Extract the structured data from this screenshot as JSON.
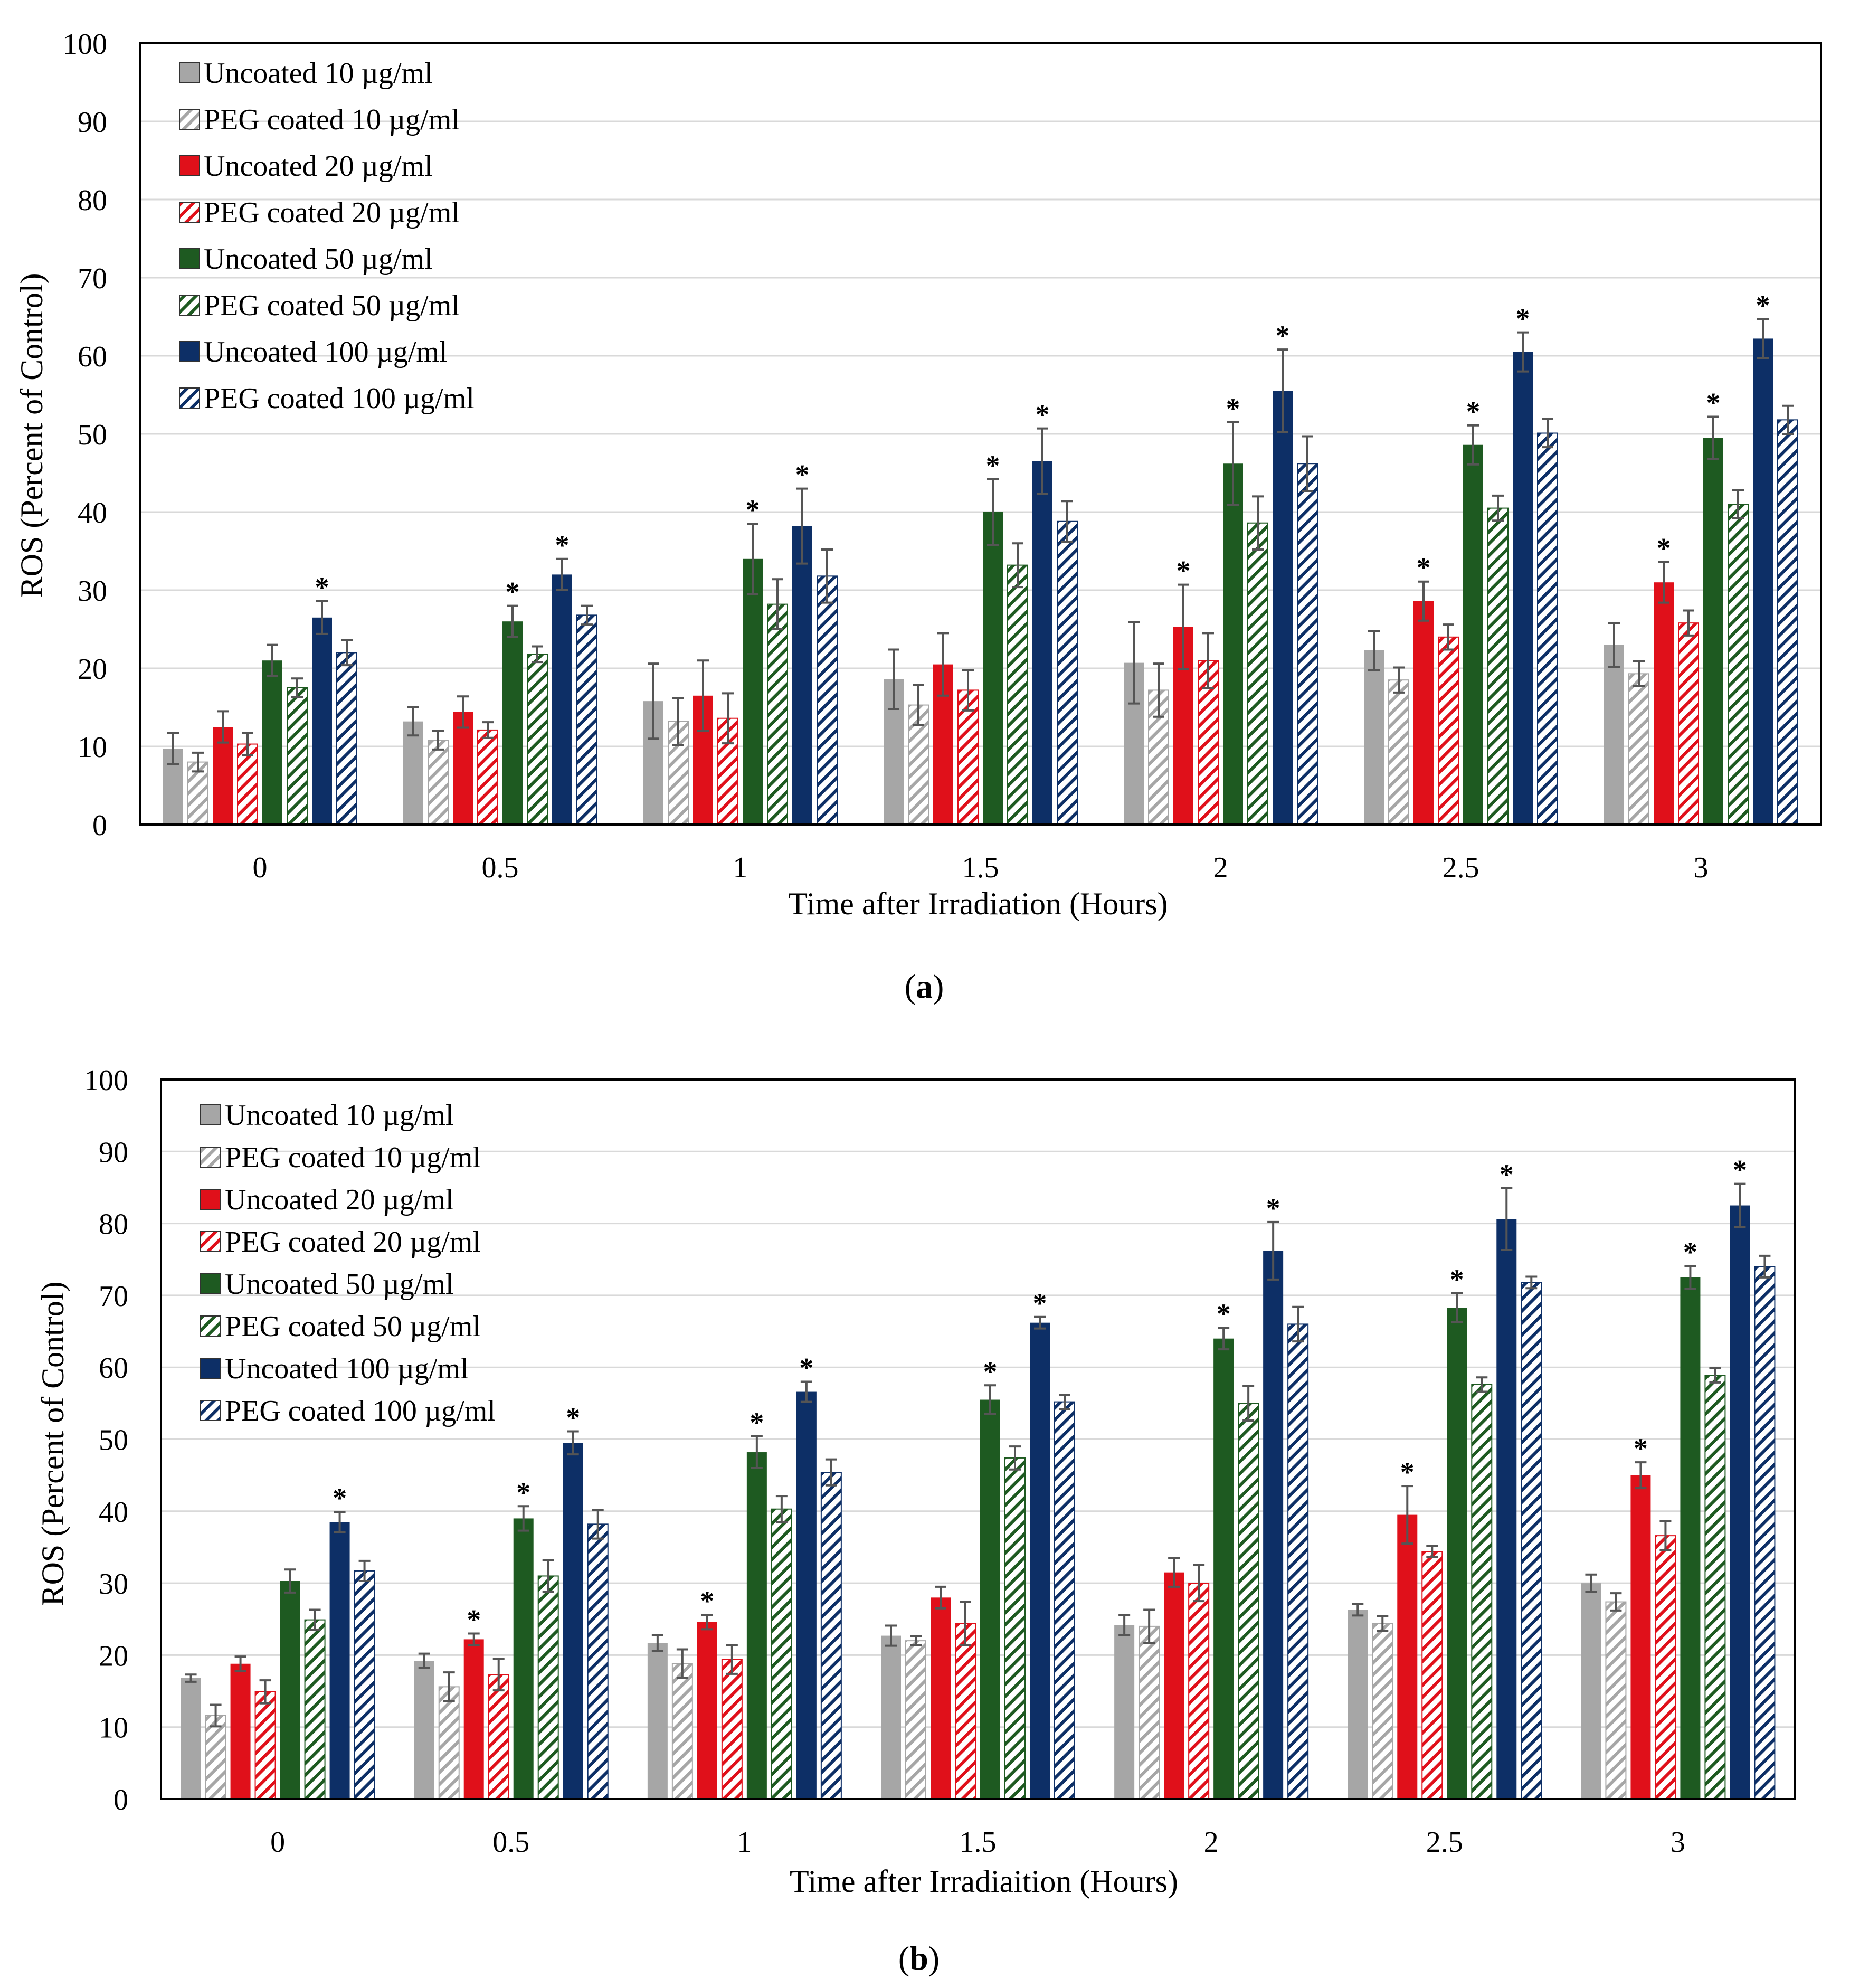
{
  "colors": {
    "uncoated_10": "#a6a6a6",
    "uncoated_20": "#e0101a",
    "uncoated_50": "#1e5a21",
    "uncoated_100": "#0d2f66",
    "error_bar": "#555555",
    "grid": "#d9d9d9"
  },
  "chart_data": [
    {
      "type": "bar",
      "panel_label": "(a)",
      "panel_letter": "a",
      "title": "",
      "xlabel": "Time after Irradiation (Hours)",
      "ylabel": "ROS (Percent of Control)",
      "ylim": [
        0,
        100
      ],
      "yticks": [
        0,
        10,
        20,
        30,
        40,
        50,
        60,
        70,
        80,
        90,
        100
      ],
      "grid": true,
      "legend_position": "top-left",
      "categories": [
        "0",
        "0.5",
        "1",
        "1.5",
        "2",
        "2.5",
        "3"
      ],
      "series": [
        {
          "name": "Uncoated  10 µg/ml",
          "style": "solid",
          "color_key": "uncoated_10",
          "values": [
            9.7,
            13.2,
            15.8,
            18.6,
            20.7,
            22.3,
            23.0
          ],
          "errors": [
            2.0,
            1.8,
            4.8,
            3.8,
            5.2,
            2.5,
            2.8
          ],
          "significant": [
            false,
            false,
            false,
            false,
            false,
            false,
            false
          ]
        },
        {
          "name": "PEG coated 10 µg/ml",
          "style": "hatched",
          "color_key": "uncoated_10",
          "values": [
            8.0,
            10.8,
            13.2,
            15.3,
            17.2,
            18.5,
            19.3
          ],
          "errors": [
            1.2,
            1.2,
            3.0,
            2.6,
            3.4,
            1.6,
            1.6
          ],
          "significant": [
            false,
            false,
            false,
            false,
            false,
            false,
            false
          ]
        },
        {
          "name": "Uncoated  20 µg/ml",
          "style": "solid",
          "color_key": "uncoated_20",
          "values": [
            12.5,
            14.4,
            16.5,
            20.5,
            25.3,
            28.6,
            31.0
          ],
          "errors": [
            2.0,
            2.0,
            4.5,
            4.0,
            5.4,
            2.5,
            2.6
          ],
          "significant": [
            false,
            false,
            false,
            false,
            true,
            true,
            true
          ]
        },
        {
          "name": "PEG coated 20 µg/ml",
          "style": "hatched",
          "color_key": "uncoated_20",
          "values": [
            10.3,
            12.1,
            13.6,
            17.2,
            21.0,
            24.0,
            25.8
          ],
          "errors": [
            1.4,
            1.0,
            3.2,
            2.6,
            3.5,
            1.6,
            1.6
          ],
          "significant": [
            false,
            false,
            false,
            false,
            false,
            false,
            false
          ]
        },
        {
          "name": "Uncoated  50 µg/ml",
          "style": "solid",
          "color_key": "uncoated_50",
          "values": [
            21.0,
            26.0,
            34.0,
            40.0,
            46.2,
            48.6,
            49.5
          ],
          "errors": [
            2.0,
            2.0,
            4.5,
            4.2,
            5.3,
            2.5,
            2.7
          ],
          "significant": [
            false,
            true,
            true,
            true,
            true,
            true,
            true
          ]
        },
        {
          "name": "PEG coated 50 µg/ml",
          "style": "hatched",
          "color_key": "uncoated_50",
          "values": [
            17.5,
            21.8,
            28.2,
            33.2,
            38.6,
            40.5,
            41.0
          ],
          "errors": [
            1.2,
            1.0,
            3.2,
            2.8,
            3.4,
            1.6,
            1.8
          ],
          "significant": [
            false,
            false,
            false,
            false,
            false,
            false,
            false
          ]
        },
        {
          "name": "Uncoated  100 µg/ml",
          "style": "solid",
          "color_key": "uncoated_100",
          "values": [
            26.5,
            32.0,
            38.2,
            46.5,
            55.5,
            60.5,
            62.2
          ],
          "errors": [
            2.1,
            2.0,
            4.8,
            4.2,
            5.3,
            2.5,
            2.5
          ],
          "significant": [
            true,
            true,
            true,
            true,
            true,
            true,
            true
          ]
        },
        {
          "name": "PEG coated 100 µg/ml",
          "style": "hatched",
          "color_key": "uncoated_100",
          "values": [
            22.0,
            26.8,
            31.8,
            38.8,
            46.2,
            50.1,
            51.8
          ],
          "errors": [
            1.6,
            1.2,
            3.4,
            2.6,
            3.5,
            1.8,
            1.8
          ],
          "significant": [
            false,
            false,
            false,
            false,
            false,
            false,
            false
          ]
        }
      ]
    },
    {
      "type": "bar",
      "panel_label": "(b)",
      "panel_letter": "b",
      "title": "",
      "xlabel": "Time after Irradiaition (Hours)",
      "ylabel": "ROS (Percent of Control)",
      "ylim": [
        0,
        100
      ],
      "yticks": [
        0,
        10,
        20,
        30,
        40,
        50,
        60,
        70,
        80,
        90,
        100
      ],
      "grid": true,
      "legend_position": "top-left",
      "categories": [
        "0",
        "0.5",
        "1",
        "1.5",
        "2",
        "2.5",
        "3"
      ],
      "series": [
        {
          "name": "Uncoated  10 µg/ml",
          "style": "solid",
          "color_key": "uncoated_10",
          "values": [
            16.8,
            19.2,
            21.7,
            22.7,
            24.2,
            26.3,
            30.0
          ],
          "errors": [
            0.5,
            1.0,
            1.1,
            1.4,
            1.4,
            0.8,
            1.2
          ],
          "significant": [
            false,
            false,
            false,
            false,
            false,
            false,
            false
          ]
        },
        {
          "name": "PEG coated 10 µg/ml",
          "style": "hatched",
          "color_key": "uncoated_10",
          "values": [
            11.6,
            15.6,
            18.8,
            22.0,
            24.0,
            24.4,
            27.4
          ],
          "errors": [
            1.5,
            2.0,
            2.0,
            0.6,
            2.3,
            1.0,
            1.2
          ],
          "significant": [
            false,
            false,
            false,
            false,
            false,
            false,
            false
          ]
        },
        {
          "name": "Uncoated  20 µg/ml",
          "style": "solid",
          "color_key": "uncoated_20",
          "values": [
            18.8,
            22.2,
            24.6,
            28.0,
            31.5,
            39.5,
            45.0
          ],
          "errors": [
            1.0,
            0.8,
            1.0,
            1.5,
            2.0,
            4.0,
            1.8
          ],
          "significant": [
            false,
            true,
            true,
            false,
            false,
            true,
            true
          ]
        },
        {
          "name": "PEG coated 20 µg/ml",
          "style": "hatched",
          "color_key": "uncoated_20",
          "values": [
            14.9,
            17.3,
            19.4,
            24.4,
            30.0,
            34.4,
            36.6
          ],
          "errors": [
            1.6,
            2.2,
            2.0,
            3.0,
            2.5,
            0.8,
            2.0
          ],
          "significant": [
            false,
            false,
            false,
            false,
            false,
            false,
            false
          ]
        },
        {
          "name": "Uncoated  50 µg/ml",
          "style": "solid",
          "color_key": "uncoated_50",
          "values": [
            30.3,
            39.0,
            48.2,
            55.5,
            64.0,
            68.3,
            72.5
          ],
          "errors": [
            1.6,
            1.7,
            2.2,
            2.0,
            1.5,
            2.0,
            1.6
          ],
          "significant": [
            false,
            true,
            true,
            true,
            true,
            true,
            true
          ]
        },
        {
          "name": "PEG coated 50 µg/ml",
          "style": "hatched",
          "color_key": "uncoated_50",
          "values": [
            24.9,
            31.0,
            40.3,
            47.4,
            55.0,
            57.6,
            58.9
          ],
          "errors": [
            1.4,
            2.2,
            1.8,
            1.6,
            2.4,
            1.0,
            1.0
          ],
          "significant": [
            false,
            false,
            false,
            false,
            false,
            false,
            false
          ]
        },
        {
          "name": "Uncoated  100 µg/ml",
          "style": "solid",
          "color_key": "uncoated_100",
          "values": [
            38.5,
            49.5,
            56.6,
            66.2,
            76.2,
            80.6,
            82.5
          ],
          "errors": [
            1.4,
            1.6,
            1.4,
            0.8,
            4.0,
            4.3,
            3.0
          ],
          "significant": [
            true,
            true,
            true,
            true,
            true,
            true,
            true
          ]
        },
        {
          "name": "PEG coated 100 µg/ml",
          "style": "hatched",
          "color_key": "uncoated_100",
          "values": [
            31.7,
            38.2,
            45.4,
            55.2,
            66.0,
            71.8,
            74.0
          ],
          "errors": [
            1.4,
            2.0,
            1.8,
            1.0,
            2.4,
            0.8,
            1.5
          ],
          "significant": [
            false,
            false,
            false,
            false,
            false,
            false,
            false
          ]
        }
      ]
    }
  ]
}
